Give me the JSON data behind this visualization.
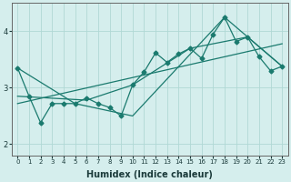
{
  "xlabel": "Humidex (Indice chaleur)",
  "background_color": "#d5eeed",
  "grid_color": "#b0d8d5",
  "line_color": "#1a7a6e",
  "xlim": [
    -0.5,
    23.5
  ],
  "ylim": [
    1.8,
    4.5
  ],
  "yticks": [
    2,
    3,
    4
  ],
  "xticks": [
    0,
    1,
    2,
    3,
    4,
    5,
    6,
    7,
    8,
    9,
    10,
    11,
    12,
    13,
    14,
    15,
    16,
    17,
    18,
    19,
    20,
    21,
    22,
    23
  ],
  "series": [
    {
      "x": [
        0,
        1,
        2,
        3,
        4,
        5,
        6,
        7,
        8,
        9,
        10,
        11,
        12,
        13,
        14,
        15,
        16,
        17,
        18,
        19,
        20,
        21,
        22,
        23
      ],
      "y": [
        3.35,
        2.85,
        2.38,
        2.72,
        2.72,
        2.72,
        2.82,
        2.72,
        2.65,
        2.5,
        3.05,
        3.28,
        3.62,
        3.45,
        3.6,
        3.7,
        3.52,
        3.95,
        4.25,
        3.82,
        3.9,
        3.55,
        3.3,
        3.38
      ],
      "has_markers": true
    },
    {
      "x": [
        0,
        23
      ],
      "y": [
        2.72,
        3.78
      ],
      "has_markers": false
    },
    {
      "x": [
        0,
        5,
        10,
        18,
        23
      ],
      "y": [
        3.35,
        2.72,
        2.5,
        4.25,
        3.38
      ],
      "has_markers": false
    },
    {
      "x": [
        0,
        6,
        10,
        15,
        20,
        23
      ],
      "y": [
        2.85,
        2.78,
        3.05,
        3.7,
        3.9,
        3.38
      ],
      "has_markers": false
    }
  ],
  "marker": "D",
  "markersize": 2.5,
  "linewidth": 0.9
}
